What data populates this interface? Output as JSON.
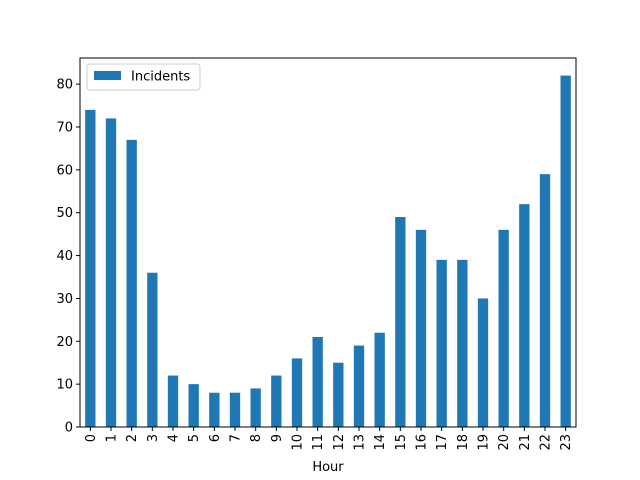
{
  "chart_data": {
    "type": "bar",
    "categories": [
      "0",
      "1",
      "2",
      "3",
      "4",
      "5",
      "6",
      "7",
      "8",
      "9",
      "10",
      "11",
      "12",
      "13",
      "14",
      "15",
      "16",
      "17",
      "18",
      "19",
      "20",
      "21",
      "22",
      "23"
    ],
    "series": [
      {
        "name": "Incidents",
        "color": "#1f77b4",
        "values": [
          74,
          72,
          67,
          36,
          12,
          10,
          8,
          8,
          9,
          12,
          16,
          21,
          15,
          19,
          22,
          49,
          46,
          39,
          39,
          30,
          46,
          52,
          59,
          82
        ]
      }
    ],
    "xlabel": "Hour",
    "ylabel": "",
    "ylim": [
      0,
      86.1
    ],
    "yticks": [
      0,
      10,
      20,
      30,
      40,
      50,
      60,
      70,
      80
    ],
    "legend": {
      "placement": "top-left",
      "entries": [
        "Incidents"
      ]
    },
    "grid": false
  }
}
